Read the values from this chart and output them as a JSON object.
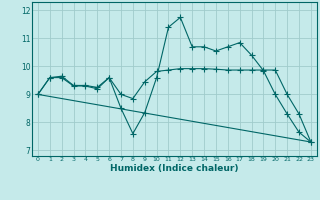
{
  "title": "",
  "xlabel": "Humidex (Indice chaleur)",
  "ylabel": "",
  "bg_color": "#c5eaea",
  "line_color": "#006666",
  "grid_color": "#a0cccc",
  "series": {
    "line1": {
      "x": [
        0,
        1,
        2,
        3,
        4,
        5,
        6,
        7,
        8,
        9,
        10,
        11,
        12,
        13,
        14,
        15,
        16,
        17,
        18,
        19,
        20,
        21,
        22,
        23
      ],
      "y": [
        9.0,
        9.6,
        9.6,
        9.3,
        9.3,
        9.2,
        9.6,
        8.5,
        7.6,
        8.35,
        9.6,
        11.4,
        11.75,
        10.7,
        10.7,
        10.55,
        10.7,
        10.85,
        10.4,
        9.85,
        9.0,
        8.3,
        7.65,
        7.3
      ]
    },
    "line2": {
      "x": [
        0,
        1,
        2,
        3,
        4,
        5,
        6,
        7,
        8,
        9,
        10,
        11,
        12,
        13,
        14,
        15,
        16,
        17,
        18,
        19,
        20,
        21,
        22,
        23
      ],
      "y": [
        9.0,
        9.6,
        9.65,
        9.32,
        9.32,
        9.25,
        9.6,
        9.0,
        8.85,
        9.45,
        9.82,
        9.87,
        9.92,
        9.92,
        9.92,
        9.9,
        9.87,
        9.87,
        9.87,
        9.87,
        9.87,
        9.0,
        8.3,
        7.3
      ]
    },
    "line3": {
      "x": [
        0,
        23
      ],
      "y": [
        9.0,
        7.3
      ]
    }
  },
  "xlim": [
    -0.5,
    23.5
  ],
  "ylim": [
    6.8,
    12.3
  ],
  "yticks": [
    7,
    8,
    9,
    10,
    11,
    12
  ],
  "xticks": [
    0,
    1,
    2,
    3,
    4,
    5,
    6,
    7,
    8,
    9,
    10,
    11,
    12,
    13,
    14,
    15,
    16,
    17,
    18,
    19,
    20,
    21,
    22,
    23
  ],
  "marker": "+",
  "markersize": 4,
  "linewidth": 0.8
}
